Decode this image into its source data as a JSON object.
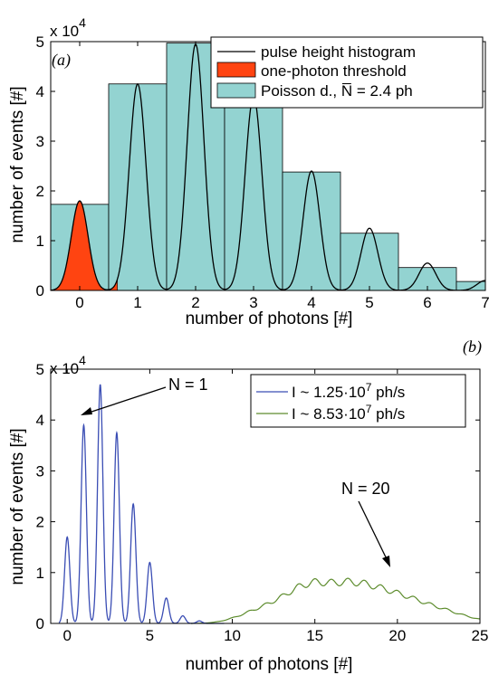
{
  "chart_data": [
    {
      "type": "bar",
      "panel_label": "(a)",
      "scale_label": "x 10",
      "scale_exp": "4",
      "xlabel": "number of photons [#]",
      "ylabel": "number of events [#]",
      "xlim": [
        -0.5,
        7
      ],
      "ylim": [
        0,
        50000
      ],
      "x_ticks": [
        0,
        1,
        2,
        3,
        4,
        5,
        6,
        7
      ],
      "y_ticks": [
        0,
        10000,
        20000,
        30000,
        40000,
        50000
      ],
      "y_tick_labels": [
        "0",
        "1",
        "2",
        "3",
        "4",
        "5"
      ],
      "legend_position": "top-right",
      "series": [
        {
          "name": "pulse height histogram",
          "type": "line",
          "color": "#000000",
          "peaks": [
            {
              "x": 0,
              "y": 18000
            },
            {
              "x": 1,
              "y": 41500
            },
            {
              "x": 2,
              "y": 49500
            },
            {
              "x": 3,
              "y": 39000
            },
            {
              "x": 4,
              "y": 24000
            },
            {
              "x": 5,
              "y": 12500
            },
            {
              "x": 6,
              "y": 5500
            },
            {
              "x": 7,
              "y": 2000
            }
          ]
        },
        {
          "name": "one-photon threshold",
          "type": "area",
          "color": "#ff4411",
          "x_range": [
            -0.5,
            0.65
          ]
        },
        {
          "name": "Poisson d., N̅ = 2.4 ph",
          "type": "bar",
          "color": "#93d3d1",
          "categories": [
            0,
            1,
            2,
            3,
            4,
            5,
            6,
            7
          ],
          "values": [
            17300,
            41500,
            49700,
            39700,
            23800,
            11500,
            4600,
            1800
          ]
        }
      ]
    },
    {
      "type": "line",
      "panel_label": "(b)",
      "scale_label": "x 10",
      "scale_exp": "4",
      "xlabel": "number of photons [#]",
      "ylabel": "number of events [#]",
      "xlim": [
        -1,
        25
      ],
      "ylim": [
        0,
        50000
      ],
      "x_ticks": [
        0,
        5,
        10,
        15,
        20,
        25
      ],
      "y_ticks": [
        0,
        10000,
        20000,
        30000,
        40000,
        50000
      ],
      "y_tick_labels": [
        "0",
        "1",
        "2",
        "3",
        "4",
        "5"
      ],
      "legend_position": "top-right",
      "series": [
        {
          "name": "I ~ 1.25·10",
          "name_exp": "7",
          "name_unit": " ph/s",
          "color": "#3a4db4",
          "peaks": [
            {
              "x": 0,
              "y": 17000
            },
            {
              "x": 1,
              "y": 39000
            },
            {
              "x": 2,
              "y": 47000
            },
            {
              "x": 3,
              "y": 37500
            },
            {
              "x": 4,
              "y": 23500
            },
            {
              "x": 5,
              "y": 12000
            },
            {
              "x": 6,
              "y": 5000
            },
            {
              "x": 7,
              "y": 1500
            },
            {
              "x": 8,
              "y": 500
            }
          ]
        },
        {
          "name": "I ~ 8.53·10",
          "name_exp": "7",
          "name_unit": " ph/s",
          "color": "#5d8c2d",
          "peaks": [
            {
              "x": 9,
              "y": 200
            },
            {
              "x": 10,
              "y": 1000
            },
            {
              "x": 11,
              "y": 2300
            },
            {
              "x": 12,
              "y": 3600
            },
            {
              "x": 13,
              "y": 5200
            },
            {
              "x": 14,
              "y": 7300
            },
            {
              "x": 15,
              "y": 8300
            },
            {
              "x": 16,
              "y": 7900
            },
            {
              "x": 17,
              "y": 8300
            },
            {
              "x": 18,
              "y": 7900
            },
            {
              "x": 19,
              "y": 7000
            },
            {
              "x": 20,
              "y": 6000
            },
            {
              "x": 21,
              "y": 4900
            },
            {
              "x": 22,
              "y": 3700
            },
            {
              "x": 23,
              "y": 2700
            },
            {
              "x": 24,
              "y": 1600
            },
            {
              "x": 25,
              "y": 800
            }
          ]
        }
      ],
      "annotations": [
        {
          "text": "N = 1",
          "arrow_to": {
            "x": 1.5,
            "y": 39500
          }
        },
        {
          "text": "N = 20",
          "arrow_to": {
            "x": 20,
            "y": 6500
          }
        }
      ]
    }
  ]
}
